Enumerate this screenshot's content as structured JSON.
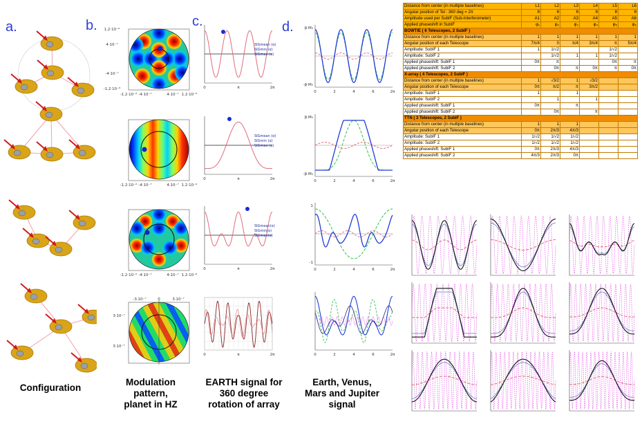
{
  "panel_labels": {
    "a": "a.",
    "b": "b.",
    "c": "c.",
    "d": "d."
  },
  "captions": {
    "configuration": "Configuration",
    "modulation": [
      "Modulation",
      "pattern,",
      "planet in HZ"
    ],
    "earth_signal": [
      "EARTH signal for",
      "360 degree",
      "rotation of array"
    ],
    "planets_signal": [
      "Earth, Venus,",
      "Mars and Jupiter",
      "signal"
    ]
  },
  "pattern_ticks": {
    "row1_y": [
      "1.2·10⁻⁶",
      "4·10⁻⁷",
      "-4·10⁻⁷",
      "-1.2·10⁻⁶"
    ],
    "row1_x": [
      "-1.2·10⁻⁶",
      "-4·10⁻⁷",
      "4·10⁻⁷",
      "1.2·10⁻⁶"
    ],
    "row2_x": [
      "-1.2·10⁻⁶",
      "-4·10⁻⁷",
      "4·10⁻⁷",
      "1.2·10⁻⁶"
    ],
    "row3_x": [
      "-1.2·10⁻⁶",
      "-4·10⁻⁷",
      "4·10⁻⁷",
      "1.2·10⁻⁶"
    ],
    "row4_top": [
      "-3·10⁻⁷",
      "0",
      "3·10⁻⁷"
    ],
    "row4_y": [
      "3·10⁻⁷",
      "3·10⁻⁷"
    ]
  },
  "signal_ticks": {
    "c_x": [
      "0",
      "π",
      "2π"
    ],
    "d_x": [
      "0",
      "2",
      "4",
      "6",
      "2π"
    ],
    "d_y": [
      "1",
      "0",
      "-1"
    ]
  },
  "legends": {
    "c1": [
      "SIGmean (α)",
      "SIGmin (α)",
      "SIGmax (α)"
    ],
    "c2": [
      "SIGmean (α)",
      "SIGmin (α)",
      "SIGmax (α)"
    ],
    "c3": [
      "SIGmean(α)",
      "SIGmin(α)",
      "SIGmax(α)"
    ],
    "d1_y": [
      "β·M₀",
      "-β·M₀"
    ],
    "d2_y": [
      "β·M₀",
      "-β·M₀"
    ]
  },
  "table": {
    "columns": [
      "L1",
      "L2",
      "L3",
      "L4",
      "L5",
      "L6"
    ],
    "header_rows": [
      {
        "label": "Distance from center (in multiple baselines)",
        "cells": [
          "L1",
          "L2",
          "L3",
          "L4",
          "L5",
          "L6"
        ]
      },
      {
        "label": "Angular position of Tel : 360 deg = 2π",
        "cells": [
          "θ",
          "θ",
          "θ",
          "θ",
          "θ",
          "θ"
        ]
      },
      {
        "label": "Amplitude used per SubIF (Sub-Interferometer)",
        "cells": [
          "A1",
          "A2",
          "A3",
          "A4",
          "A5",
          "A6"
        ]
      },
      {
        "label": "Applied phaseshift in SubIF",
        "cells": [
          "φ₁",
          "φ₂",
          "φ₃",
          "φ₄",
          "φ₅",
          "φ₆"
        ]
      }
    ],
    "sections": [
      {
        "title": "BOWTIE ( 6 Telescopes, 2 SubIF )",
        "sub": [
          {
            "label": "Distance from center (in multiple baselines)",
            "cells": [
              "1",
              "1",
              "1",
              "1",
              "1",
              "1"
            ]
          },
          {
            "label": "Angular position of each Telescope",
            "cells": [
              "7π/4",
              "0",
              "π/4",
              "3π/4",
              "π",
              "5π/4"
            ]
          }
        ],
        "rows": [
          {
            "label": "Amplitude: SubIF 1",
            "cells": [
              "1",
              "1/√2",
              "",
              "",
              "1/√2",
              ""
            ]
          },
          {
            "label": "Amplitude: SubIF 2",
            "cells": [
              "",
              "1/√2",
              "1",
              "1",
              "1/√2",
              ""
            ]
          },
          {
            "label": "Applied phaseshift: SubIF 1",
            "cells": [
              "0π",
              "π",
              "",
              "",
              "0π",
              "π"
            ]
          },
          {
            "label": "Applied phaseshift: SubIF 2",
            "cells": [
              "",
              "0π",
              "π",
              "0π",
              "π",
              "0π"
            ]
          }
        ]
      },
      {
        "title": "X-array ( 4 Telescopes, 2 SubIF )",
        "sub": [
          {
            "label": "Distance from center (in multiple baselines)",
            "cells": [
              "1",
              "√3/2",
              "1",
              "√3/2",
              "",
              ""
            ]
          },
          {
            "label": "Angular position of each Telescope",
            "cells": [
              "0π",
              "π/2",
              "π",
              "3π/2",
              "",
              ""
            ]
          }
        ],
        "rows": [
          {
            "label": "Amplitude: SubIF 1",
            "cells": [
              "1",
              "",
              "1",
              "",
              "",
              ""
            ]
          },
          {
            "label": "Amplitude: SubIF 2",
            "cells": [
              "",
              "1",
              "",
              "1",
              "",
              ""
            ]
          },
          {
            "label": "Applied phaseshift: SubIF 1",
            "cells": [
              "0π",
              "",
              "π",
              "",
              "",
              ""
            ]
          },
          {
            "label": "Applied phaseshift: SubIF 2",
            "cells": [
              "",
              "0π",
              "",
              "π",
              "",
              ""
            ]
          }
        ]
      },
      {
        "title": "TTN ( 3 Telescopes, 2 SubIF )",
        "sub": [
          {
            "label": "Distance from center (in multiple baselines)",
            "cells": [
              "1",
              "1",
              "1",
              "",
              "",
              ""
            ]
          },
          {
            "label": "Angular position of each Telescope",
            "cells": [
              "0π",
              "2π/3",
              "4π/3",
              "",
              "",
              ""
            ]
          }
        ],
        "rows": [
          {
            "label": "Amplitude: SubIF 1",
            "cells": [
              "1/√2",
              "1/√2",
              "1/√2",
              "",
              "",
              ""
            ]
          },
          {
            "label": "Amplitude: SubIF 2",
            "cells": [
              "1/√2",
              "1/√2",
              "1/√2",
              "",
              "",
              ""
            ]
          },
          {
            "label": "Applied phaseshift: SubIF 1",
            "cells": [
              "0π",
              "2π/3",
              "4π/3",
              "",
              "",
              ""
            ]
          },
          {
            "label": "Applied phaseshift: SubIF 2",
            "cells": [
              "4π/3",
              "2π/3",
              "0π",
              "",
              "",
              ""
            ]
          }
        ]
      }
    ]
  },
  "colors": {
    "label_blue": "#2b3fd6",
    "telescope_gold": "#d9a417",
    "arrow_red": "#d11a1a",
    "pink_curve": "#e06a7a",
    "green_curve": "#2ec44a",
    "blue_curve": "#1f3bd6",
    "magenta_dotted": "#e64ce6",
    "table_orange": "#f08c00",
    "table_header": "#ffb400"
  }
}
